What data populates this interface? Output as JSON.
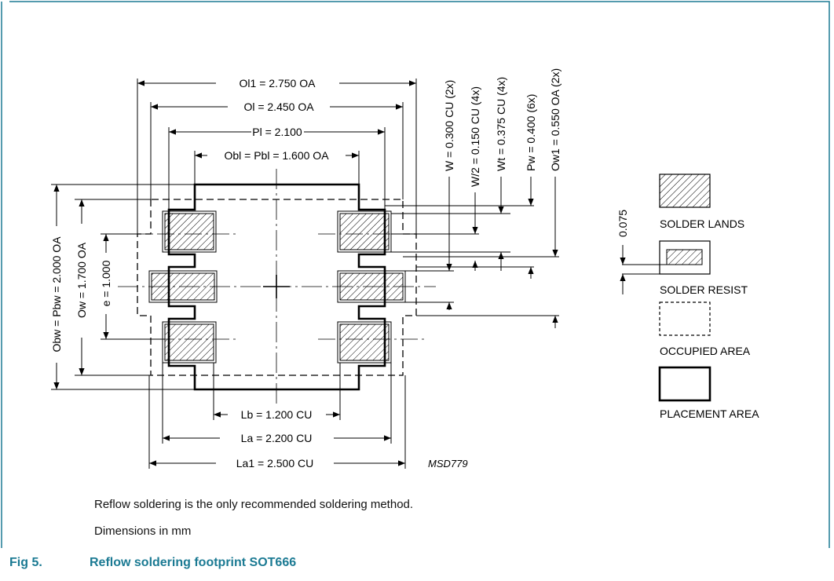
{
  "figure": {
    "number": "Fig 5.",
    "title": "Reflow soldering footprint SOT666",
    "notes": [
      "Reflow soldering is the only recommended soldering method.",
      "Dimensions in mm"
    ],
    "code": "MSD779"
  },
  "dimensions": {
    "ol1": "Ol1 = 2.750 OA",
    "ol": "Ol = 2.450 OA",
    "pl": "Pl = 2.100",
    "obl": "Obl = Pbl = 1.600 OA",
    "obw": "Obw = Pbw = 2.000 OA",
    "ow": "Ow = 1.700 OA",
    "e": "e = 1.000",
    "lb": "Lb = 1.200 CU",
    "la": "La = 2.200 CU",
    "la1": "La1 = 2.500 CU",
    "w": "W = 0.300 CU (2x)",
    "w2": "W/2 = 0.150 CU (4x)",
    "wt": "Wt = 0.375 CU (4x)",
    "pw": "Pw = 0.400 (6x)",
    "ow1": "Ow1 = 0.550 OA (2x)",
    "resist_margin": "0.075"
  },
  "legend": {
    "solder_lands": "SOLDER LANDS",
    "solder_resist": "SOLDER RESIST",
    "occupied_area": "OCCUPIED AREA",
    "placement_area": "PLACEMENT AREA"
  },
  "colors": {
    "caption": "#1b7a93",
    "frame": "#1b7a93"
  }
}
